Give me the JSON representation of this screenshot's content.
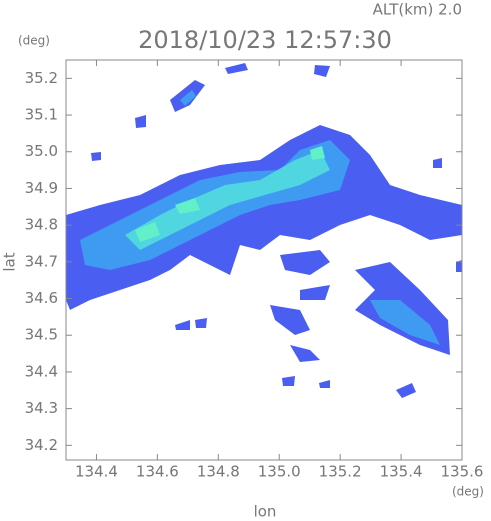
{
  "chart_data": {
    "type": "radar-map",
    "subtitle": "ALT(km) 2.0",
    "title": "2018/10/23 12:57:30",
    "x_label": "lon",
    "y_label": "lat",
    "x_unit": "(deg)",
    "y_unit": "(deg)",
    "xlim": [
      134.3,
      135.6
    ],
    "xticks": [
      134.4,
      134.6,
      134.8,
      {
        "value": 135,
        "label": "135.0"
      },
      135.2,
      135.4,
      135.6
    ],
    "ylim": [
      34.16,
      35.25
    ],
    "yticks": [
      34.2,
      34.3,
      34.4,
      34.5,
      34.6,
      34.7,
      34.8,
      34.9,
      {
        "value": 35,
        "label": "35.0"
      },
      35.1,
      35.2
    ]
  }
}
